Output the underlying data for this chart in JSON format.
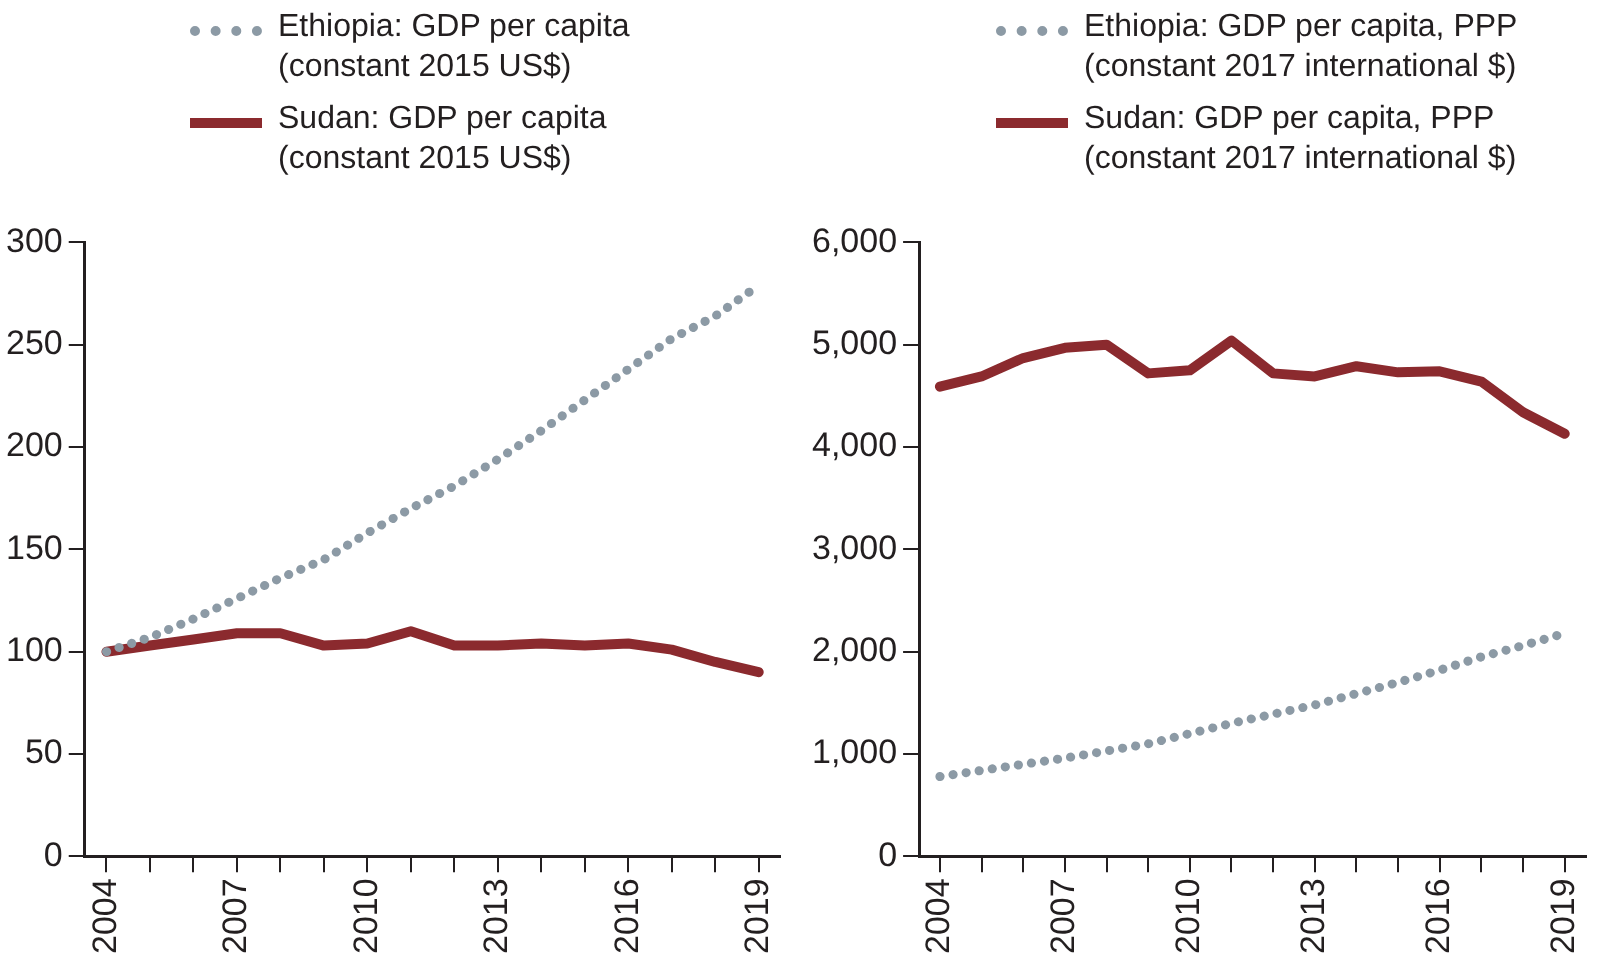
{
  "chart_data": [
    {
      "type": "line",
      "x": [
        2004,
        2005,
        2006,
        2007,
        2008,
        2009,
        2010,
        2011,
        2012,
        2013,
        2014,
        2015,
        2016,
        2017,
        2018,
        2019
      ],
      "series": [
        {
          "name": "Ethiopia: GDP per capita (constant 2015 US$)",
          "color": "#8c9aa5",
          "line_style": "dotted",
          "values": [
            100,
            107,
            116,
            126,
            136,
            145,
            158,
            170,
            181,
            194,
            208,
            223,
            238,
            253,
            264,
            279
          ]
        },
        {
          "name": "Sudan: GDP per capita (constant 2015 US$)",
          "color": "#8b2a2e",
          "line_style": "solid",
          "values": [
            100,
            103,
            106,
            109,
            109,
            103,
            104,
            110,
            103,
            103,
            104,
            103,
            104,
            101,
            95,
            90
          ]
        }
      ],
      "xlim": [
        2003.5,
        2019.5
      ],
      "xticks": [
        2004,
        {
          "value": 2005,
          "label": null
        },
        {
          "value": 2006,
          "label": null
        },
        2007,
        {
          "value": 2008,
          "label": null
        },
        {
          "value": 2009,
          "label": null
        },
        2010,
        {
          "value": 2011,
          "label": null
        },
        {
          "value": 2012,
          "label": null
        },
        2013,
        {
          "value": 2014,
          "label": null
        },
        {
          "value": 2015,
          "label": null
        },
        2016,
        {
          "value": 2017,
          "label": null
        },
        {
          "value": 2018,
          "label": null
        },
        2019
      ],
      "ylim": [
        0,
        300
      ],
      "yticks": [
        0,
        50,
        100,
        150,
        200,
        250,
        300
      ],
      "grid": false,
      "legend": "top",
      "marker": "none"
    },
    {
      "type": "line",
      "x": [
        2004,
        2005,
        2006,
        2007,
        2008,
        2009,
        2010,
        2011,
        2012,
        2013,
        2014,
        2015,
        2016,
        2017,
        2018,
        2019
      ],
      "series": [
        {
          "name": "Ethiopia: GDP per capita, PPP (constant 2017 international $)",
          "color": "#8c9aa5",
          "line_style": "dotted",
          "values": [
            780,
            840,
            900,
            960,
            1030,
            1100,
            1200,
            1300,
            1390,
            1480,
            1590,
            1700,
            1820,
            1950,
            2060,
            2180
          ]
        },
        {
          "name": "Sudan: GDP per capita, PPP (constant 2017 international $)",
          "color": "#8b2a2e",
          "line_style": "solid",
          "values": [
            4590,
            4690,
            4870,
            4970,
            5000,
            4720,
            4750,
            5040,
            4720,
            4690,
            4790,
            4730,
            4740,
            4640,
            4340,
            4130
          ]
        }
      ],
      "xlim": [
        2003.5,
        2019.5
      ],
      "xticks": [
        2004,
        {
          "value": 2005,
          "label": null
        },
        {
          "value": 2006,
          "label": null
        },
        2007,
        {
          "value": 2008,
          "label": null
        },
        {
          "value": 2009,
          "label": null
        },
        2010,
        {
          "value": 2011,
          "label": null
        },
        {
          "value": 2012,
          "label": null
        },
        2013,
        {
          "value": 2014,
          "label": null
        },
        {
          "value": 2015,
          "label": null
        },
        2016,
        {
          "value": 2017,
          "label": null
        },
        {
          "value": 2018,
          "label": null
        },
        2019
      ],
      "ylim": [
        0,
        6000
      ],
      "yticks": [
        0,
        {
          "value": 1000,
          "label": "1,000"
        },
        {
          "value": 2000,
          "label": "2,000"
        },
        {
          "value": 3000,
          "label": "3,000"
        },
        {
          "value": 4000,
          "label": "4,000"
        },
        {
          "value": 5000,
          "label": "5,000"
        },
        {
          "value": 6000,
          "label": "6,000"
        }
      ],
      "grid": false,
      "legend": "top",
      "marker": "none"
    }
  ]
}
